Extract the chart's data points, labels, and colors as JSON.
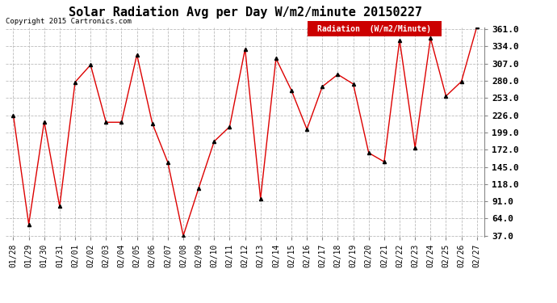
{
  "title": "Solar Radiation Avg per Day W/m2/minute 20150227",
  "copyright": "Copyright 2015 Cartronics.com",
  "legend_label": "Radiation  (W/m2/Minute)",
  "dates": [
    "01/28",
    "01/29",
    "01/30",
    "01/31",
    "02/01",
    "02/02",
    "02/03",
    "02/04",
    "02/05",
    "02/06",
    "02/07",
    "02/08",
    "02/09",
    "02/10",
    "02/11",
    "02/12",
    "02/13",
    "02/14",
    "02/15",
    "02/16",
    "02/17",
    "02/18",
    "02/19",
    "02/20",
    "02/21",
    "02/22",
    "02/23",
    "02/24",
    "02/25",
    "02/26",
    "02/27"
  ],
  "values": [
    226,
    55,
    216,
    83,
    278,
    305,
    215,
    215,
    321,
    213,
    152,
    37,
    112,
    185,
    208,
    330,
    95,
    315,
    265,
    204,
    271,
    290,
    275,
    167,
    153,
    344,
    175,
    347,
    256,
    279,
    365
  ],
  "line_color": "#dd0000",
  "marker": "^",
  "marker_color": "#000000",
  "marker_size": 3,
  "background_color": "#ffffff",
  "grid_color": "#bbbbbb",
  "ylim_min": 37.0,
  "ylim_max": 361.0,
  "yticks": [
    37.0,
    64.0,
    91.0,
    118.0,
    145.0,
    172.0,
    199.0,
    226.0,
    253.0,
    280.0,
    307.0,
    334.0,
    361.0
  ],
  "title_fontsize": 11,
  "copyright_fontsize": 6.5,
  "tick_fontsize": 7,
  "legend_bg": "#cc0000",
  "legend_text_color": "#ffffff",
  "legend_fontsize": 7
}
